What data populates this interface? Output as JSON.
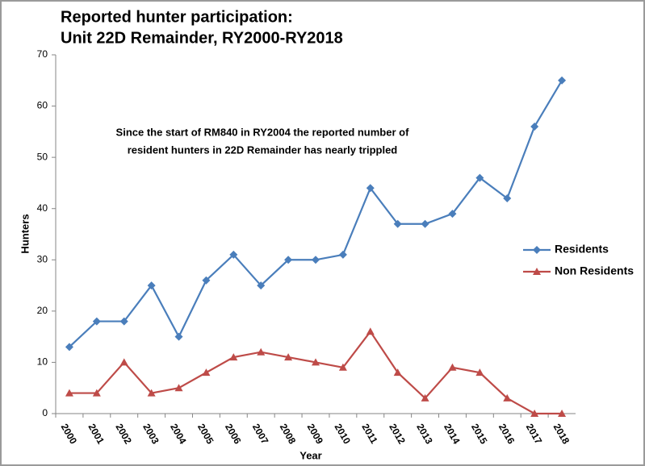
{
  "chart_data": {
    "type": "line",
    "title": [
      "Reported hunter participation:",
      "Unit 22D Remainder, RY2000-RY2018"
    ],
    "annotation": [
      "Since the start of RM840 in RY2004 the reported  number of",
      "resident hunters in 22D Remainder has nearly trippled"
    ],
    "xlabel": "Year",
    "ylabel": "Hunters",
    "categories": [
      "2000",
      "2001",
      "2002",
      "2003",
      "2004",
      "2005",
      "2006",
      "2007",
      "2008",
      "2009",
      "2010",
      "2011",
      "2012",
      "2013",
      "2014",
      "2015",
      "2016",
      "2017",
      "2018"
    ],
    "series": [
      {
        "name": "Residents",
        "color": "#4a7ebb",
        "marker": "diamond",
        "values": [
          13,
          18,
          18,
          25,
          15,
          26,
          31,
          25,
          30,
          30,
          31,
          44,
          37,
          37,
          39,
          46,
          42,
          56,
          65
        ]
      },
      {
        "name": "Non Residents",
        "color": "#be4b48",
        "marker": "triangle",
        "values": [
          4,
          4,
          10,
          4,
          5,
          8,
          11,
          12,
          11,
          10,
          9,
          16,
          8,
          3,
          9,
          8,
          3,
          0,
          0
        ]
      }
    ],
    "ylim": [
      0,
      70
    ],
    "yticks": [
      0,
      10,
      20,
      30,
      40,
      50,
      60,
      70
    ],
    "grid": false,
    "legend": "right"
  }
}
